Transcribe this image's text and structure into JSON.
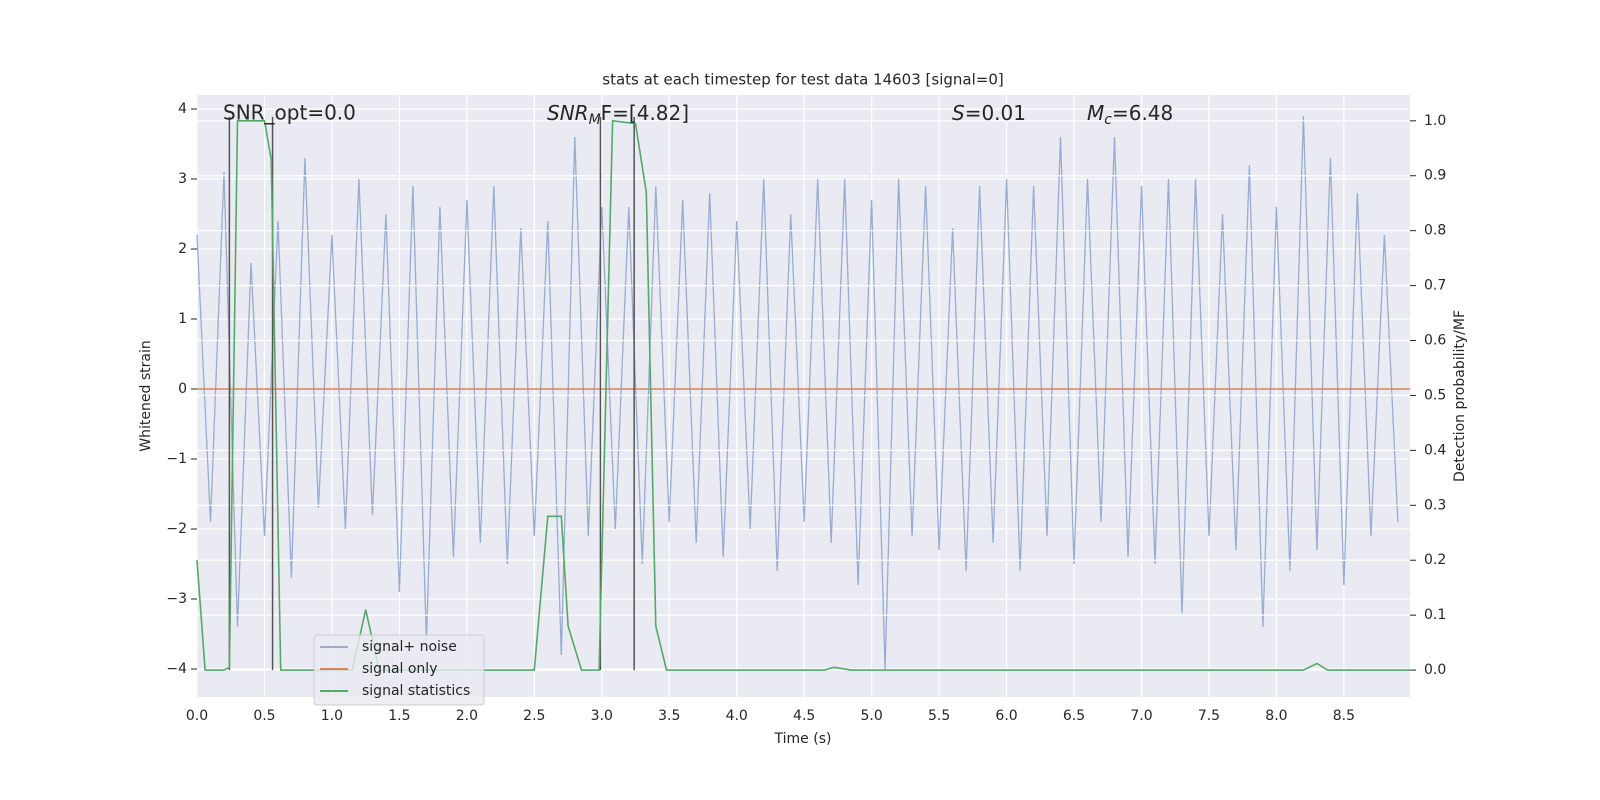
{
  "chart_data": {
    "type": "line",
    "title": "stats at each timestep for test data 14603 [signal=0]",
    "x_label": "Time (s)",
    "y_label": "Whitened strain",
    "y2_label": "Detection probability/MF",
    "annotations": [
      "SNR_opt=0.0",
      [
        "SNR",
        "M",
        "F=[4.82]"
      ],
      [
        "S",
        "=0.01"
      ],
      [
        "M",
        "c",
        "=6.48"
      ]
    ],
    "vlines": [
      0.24,
      0.56,
      2.99,
      3.24
    ],
    "vline_color": "#555555",
    "xlim": [
      0,
      8.99
    ],
    "ylim": [
      -4.4,
      4.2
    ],
    "y2lim": [
      -0.049,
      1.047
    ],
    "xticks": [
      {
        "value": 0,
        "label": "0.0"
      },
      0.5,
      {
        "value": 1,
        "label": "1.0"
      },
      1.5,
      {
        "value": 2,
        "label": "2.0"
      },
      2.5,
      {
        "value": 3,
        "label": "3.0"
      },
      3.5,
      {
        "value": 4,
        "label": "4.0"
      },
      4.5,
      {
        "value": 5,
        "label": "5.0"
      },
      5.5,
      {
        "value": 6,
        "label": "6.0"
      },
      6.5,
      {
        "value": 7,
        "label": "7.0"
      },
      7.5,
      {
        "value": 8,
        "label": "8.0"
      },
      8.5
    ],
    "yticks": [
      {
        "value": -4,
        "label": "−4"
      },
      {
        "value": -3,
        "label": "−3"
      },
      {
        "value": -2,
        "label": "−2"
      },
      {
        "value": -1,
        "label": "−1"
      },
      0,
      1,
      2,
      3,
      4
    ],
    "y2ticks": [
      {
        "value": 0,
        "label": "0.0"
      },
      0.1,
      0.2,
      0.3,
      0.4,
      0.5,
      0.6,
      0.7,
      0.8,
      0.9,
      {
        "value": 1,
        "label": "1.0"
      }
    ],
    "grid": true,
    "legend": "lower left",
    "series": [
      {
        "name": "signal+ noise",
        "color": "#98abd1",
        "x": [
          0.0,
          0.1,
          0.2,
          0.3,
          0.4,
          0.5,
          0.6,
          0.7,
          0.8,
          0.9,
          1.0,
          1.1,
          1.2,
          1.3,
          1.4,
          1.5,
          1.6,
          1.7,
          1.8,
          1.9,
          2.0,
          2.1,
          2.2,
          2.3,
          2.4,
          2.5,
          2.6,
          2.7,
          2.8,
          2.9,
          3.0,
          3.1,
          3.2,
          3.3,
          3.4,
          3.5,
          3.6,
          3.7,
          3.8,
          3.9,
          4.0,
          4.1,
          4.2,
          4.3,
          4.4,
          4.5,
          4.6,
          4.7,
          4.8,
          4.9,
          5.0,
          5.1,
          5.2,
          5.3,
          5.4,
          5.5,
          5.6,
          5.7,
          5.8,
          5.9,
          6.0,
          6.1,
          6.2,
          6.3,
          6.4,
          6.5,
          6.6,
          6.7,
          6.8,
          6.9,
          7.0,
          7.1,
          7.2,
          7.3,
          7.4,
          7.5,
          7.6,
          7.7,
          7.8,
          7.9,
          8.0,
          8.1,
          8.2,
          8.3,
          8.4,
          8.5,
          8.6,
          8.7,
          8.8,
          8.9
        ],
        "values": [
          2.2,
          -1.9,
          3.1,
          -3.4,
          1.8,
          -2.1,
          2.4,
          -2.7,
          3.3,
          -1.7,
          2.2,
          -2.0,
          3.0,
          -1.8,
          2.5,
          -2.9,
          2.9,
          -3.6,
          2.6,
          -2.4,
          2.7,
          -2.2,
          2.9,
          -2.5,
          2.3,
          -2.1,
          2.4,
          -3.8,
          3.6,
          -2.1,
          2.6,
          -2.0,
          2.6,
          -2.5,
          2.9,
          -1.9,
          2.7,
          -2.2,
          2.8,
          -2.4,
          2.4,
          -2.0,
          3.0,
          -2.6,
          2.5,
          -1.9,
          3.0,
          -2.2,
          3.0,
          -2.8,
          2.7,
          -4.0,
          3.0,
          -2.1,
          2.9,
          -2.3,
          2.3,
          -2.6,
          2.9,
          -2.2,
          3.0,
          -2.6,
          2.9,
          -2.1,
          3.6,
          -2.5,
          3.0,
          -1.9,
          3.6,
          -2.4,
          2.9,
          -2.5,
          3.0,
          -3.2,
          3.0,
          -2.1,
          2.5,
          -2.3,
          3.2,
          -3.4,
          2.6,
          -2.6,
          3.9,
          -2.3,
          3.3,
          -2.8,
          2.8,
          -2.1,
          2.2,
          -1.9
        ]
      },
      {
        "name": "signal only",
        "color": "#dd8452",
        "x": [
          0,
          8.99
        ],
        "values": [
          0,
          0
        ]
      },
      {
        "name": "signal statistics",
        "color": "#55a868",
        "axis": "y2",
        "x": [
          0.0,
          0.06,
          0.2,
          0.24,
          0.3,
          0.5,
          0.55,
          0.62,
          1.15,
          1.25,
          1.35,
          2.5,
          2.6,
          2.7,
          2.75,
          2.85,
          2.98,
          3.08,
          3.25,
          3.33,
          3.4,
          3.48,
          4.65,
          4.72,
          4.85,
          8.2,
          8.3,
          8.38,
          8.99
        ],
        "values": [
          0.2,
          0.0,
          0.0,
          0.005,
          1.0,
          1.0,
          0.93,
          0.0,
          0.0,
          0.11,
          0.0,
          0.0,
          0.28,
          0.28,
          0.08,
          0.0,
          0.0,
          1.0,
          0.995,
          0.87,
          0.08,
          0.0,
          0.0,
          0.005,
          0.0,
          0.0,
          0.012,
          0.0,
          0.0
        ]
      }
    ]
  }
}
